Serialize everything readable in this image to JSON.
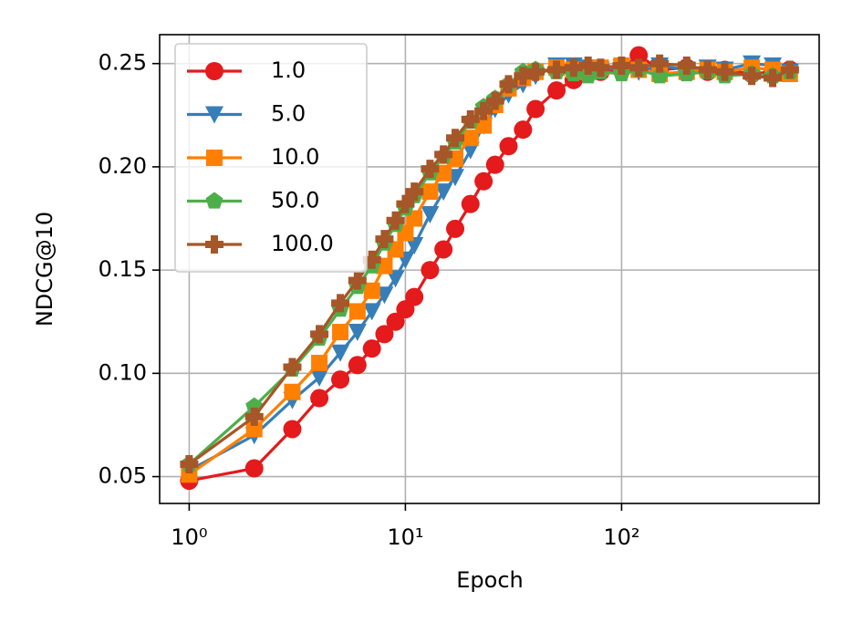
{
  "chart_data": {
    "type": "line",
    "x_label": "Epoch",
    "y_label": "NDCG@10",
    "x_scale": "log",
    "grid": true,
    "legend": "upper left",
    "xlim": [
      0.73,
      820
    ],
    "ylim": [
      0.037,
      0.264
    ],
    "xticks": [
      {
        "value": 1,
        "label": "10⁰"
      },
      {
        "value": 10,
        "label": "10¹"
      },
      {
        "value": 100,
        "label": "10²"
      }
    ],
    "yticks": [
      0.05,
      {
        "value": 0.1,
        "label": "0.10"
      },
      0.15,
      {
        "value": 0.2,
        "label": "0.20"
      },
      0.25
    ],
    "x": [
      1,
      2,
      3,
      4,
      5,
      6,
      7,
      8,
      9,
      10,
      11,
      13,
      15,
      17,
      20,
      23,
      26,
      30,
      35,
      40,
      50,
      60,
      70,
      80,
      100,
      120,
      150,
      200,
      250,
      300,
      400,
      500,
      600
    ],
    "series": [
      {
        "name": "1.0",
        "color": "#e41a1c",
        "marker": "circle",
        "values": [
          0.048,
          0.054,
          0.073,
          0.088,
          0.097,
          0.104,
          0.112,
          0.119,
          0.125,
          0.131,
          0.137,
          0.15,
          0.16,
          0.17,
          0.182,
          0.193,
          0.201,
          0.21,
          0.218,
          0.228,
          0.237,
          0.242,
          0.247,
          0.246,
          0.247,
          0.254,
          0.247,
          0.248,
          0.246,
          0.247,
          0.245,
          0.246,
          0.247
        ]
      },
      {
        "name": "5.0",
        "color": "#377eb8",
        "marker": "triangle-down",
        "values": [
          0.053,
          0.07,
          0.087,
          0.098,
          0.11,
          0.12,
          0.13,
          0.138,
          0.146,
          0.155,
          0.162,
          0.177,
          0.188,
          0.195,
          0.208,
          0.22,
          0.228,
          0.235,
          0.24,
          0.244,
          0.249,
          0.249,
          0.248,
          0.247,
          0.248,
          0.246,
          0.249,
          0.247,
          0.248,
          0.247,
          0.25,
          0.249,
          0.246
        ]
      },
      {
        "name": "10.0",
        "color": "#ff7f00",
        "marker": "square",
        "values": [
          0.051,
          0.073,
          0.091,
          0.105,
          0.12,
          0.13,
          0.14,
          0.152,
          0.16,
          0.168,
          0.175,
          0.188,
          0.197,
          0.204,
          0.214,
          0.22,
          0.23,
          0.238,
          0.243,
          0.246,
          0.248,
          0.247,
          0.246,
          0.248,
          0.249,
          0.247,
          0.245,
          0.246,
          0.247,
          0.246,
          0.248,
          0.247,
          0.245
        ]
      },
      {
        "name": "50.0",
        "color": "#4daf4a",
        "marker": "pentagon",
        "values": [
          0.056,
          0.084,
          0.102,
          0.117,
          0.131,
          0.142,
          0.152,
          0.163,
          0.172,
          0.18,
          0.186,
          0.197,
          0.205,
          0.212,
          0.222,
          0.229,
          0.233,
          0.24,
          0.246,
          0.247,
          0.246,
          0.245,
          0.244,
          0.246,
          0.245,
          0.247,
          0.244,
          0.245,
          0.246,
          0.244,
          0.245,
          0.244,
          0.246
        ]
      },
      {
        "name": "100.0",
        "color": "#a65628",
        "marker": "plus",
        "values": [
          0.056,
          0.079,
          0.103,
          0.119,
          0.134,
          0.145,
          0.155,
          0.165,
          0.174,
          0.182,
          0.188,
          0.199,
          0.206,
          0.214,
          0.223,
          0.227,
          0.232,
          0.24,
          0.244,
          0.246,
          0.247,
          0.248,
          0.249,
          0.248,
          0.249,
          0.248,
          0.25,
          0.249,
          0.247,
          0.246,
          0.244,
          0.243,
          0.247
        ]
      }
    ]
  }
}
